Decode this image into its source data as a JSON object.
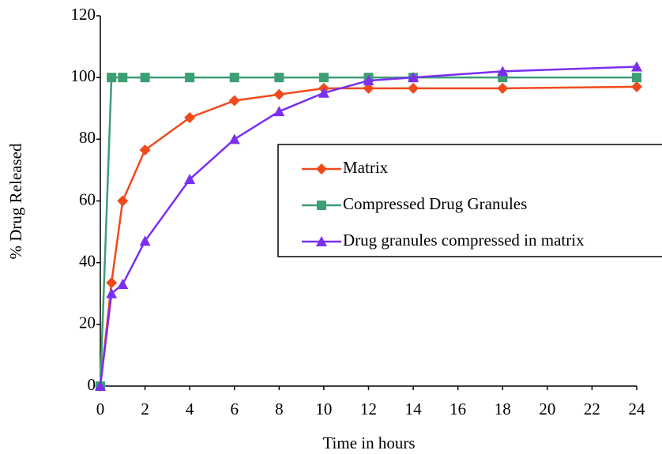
{
  "chart_data": {
    "type": "line",
    "x_label": "Time in hours",
    "y_label": "% Drug Released",
    "xlim": [
      0,
      24
    ],
    "xticks": [
      0,
      2,
      4,
      6,
      8,
      10,
      12,
      14,
      16,
      18,
      20,
      22,
      24
    ],
    "ylim": [
      0,
      120
    ],
    "yticks": [
      0,
      20,
      40,
      60,
      80,
      100,
      120
    ],
    "legend": "right",
    "series": [
      {
        "name": "Matrix",
        "color": "#f04a1c",
        "marker": "diamond",
        "x": [
          0,
          0.5,
          1,
          2,
          4,
          6,
          8,
          10,
          12,
          14,
          18,
          24
        ],
        "values": [
          0,
          33.5,
          60,
          76.5,
          87,
          92.5,
          94.5,
          96.5,
          96.5,
          96.5,
          96.5,
          97
        ]
      },
      {
        "name": "Compressed Drug Granules",
        "color": "#3d9e74",
        "marker": "square",
        "x": [
          0,
          0.5,
          1,
          2,
          4,
          6,
          8,
          10,
          12,
          14,
          18,
          24
        ],
        "values": [
          0,
          100,
          100,
          100,
          100,
          100,
          100,
          100,
          100,
          100,
          100,
          100
        ]
      },
      {
        "name": "Drug granules compressed in matrix",
        "color": "#7b2ff0",
        "marker": "triangle",
        "x": [
          0,
          0.5,
          1,
          2,
          4,
          6,
          8,
          10,
          12,
          14,
          18,
          24
        ],
        "values": [
          0,
          30,
          33,
          47,
          67,
          80,
          89,
          95,
          99,
          100,
          102,
          103.5
        ]
      }
    ]
  }
}
